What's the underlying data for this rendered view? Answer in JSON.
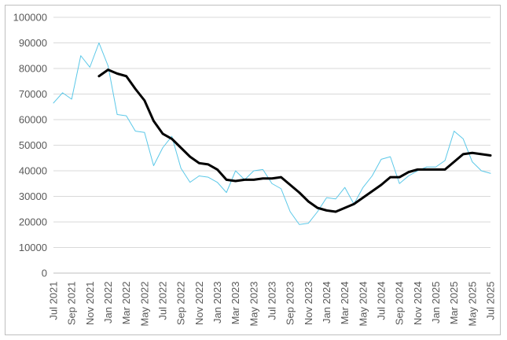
{
  "chart_data": {
    "type": "line",
    "title": "",
    "xlabel": "",
    "ylabel": "",
    "ylim": [
      0,
      100000
    ],
    "yticks": [
      "0",
      "10000",
      "20000",
      "30000",
      "40000",
      "50000",
      "60000",
      "70000",
      "80000",
      "90000",
      "100000"
    ],
    "xtick_labels": [
      "Jul 2021",
      "Sep 2021",
      "Nov 2021",
      "Jan 2022",
      "Mar 2022",
      "May 2022",
      "Jul 2022",
      "Sep 2022",
      "Nov 2022",
      "Jan 2023",
      "Mar 2023",
      "May 2023",
      "Jul 2023",
      "Sep 2023",
      "Nov 2023",
      "Jan 2024",
      "Mar 2024",
      "May 2024",
      "Jul 2024",
      "Sep 2024",
      "Nov 2024",
      "Jan 2025",
      "Mar 2025",
      "May 2025",
      "Jul 2025"
    ],
    "grid": true,
    "legend": false,
    "series": [
      {
        "color": "#5bc8e8",
        "line_width": 1,
        "values": [
          66500,
          70500,
          68000,
          85000,
          80500,
          90000,
          81000,
          62000,
          61500,
          55500,
          55000,
          42000,
          49000,
          53500,
          41000,
          35500,
          38000,
          37500,
          35500,
          31500,
          40000,
          36500,
          40000,
          40500,
          35000,
          33000,
          24000,
          19000,
          19500,
          24000,
          29500,
          29000,
          33500,
          27000,
          33500,
          38000,
          44500,
          45500,
          35000,
          38000,
          40000,
          41500,
          41500,
          44000,
          55500,
          52500,
          43500,
          40000,
          39000
        ]
      },
      {
        "color": "#000000",
        "line_width": 3,
        "values": [
          null,
          null,
          null,
          null,
          null,
          77000,
          79500,
          78000,
          77000,
          72000,
          67500,
          59500,
          54500,
          52500,
          49000,
          45500,
          43000,
          42500,
          40500,
          36500,
          36000,
          36500,
          36500,
          37000,
          37000,
          37500,
          34500,
          31500,
          28000,
          25500,
          24500,
          24000,
          25500,
          27000,
          29500,
          32000,
          34500,
          37500,
          37500,
          39500,
          40500,
          40500,
          40500,
          40500,
          43500,
          46500,
          47000,
          46500,
          46000
        ]
      }
    ]
  }
}
